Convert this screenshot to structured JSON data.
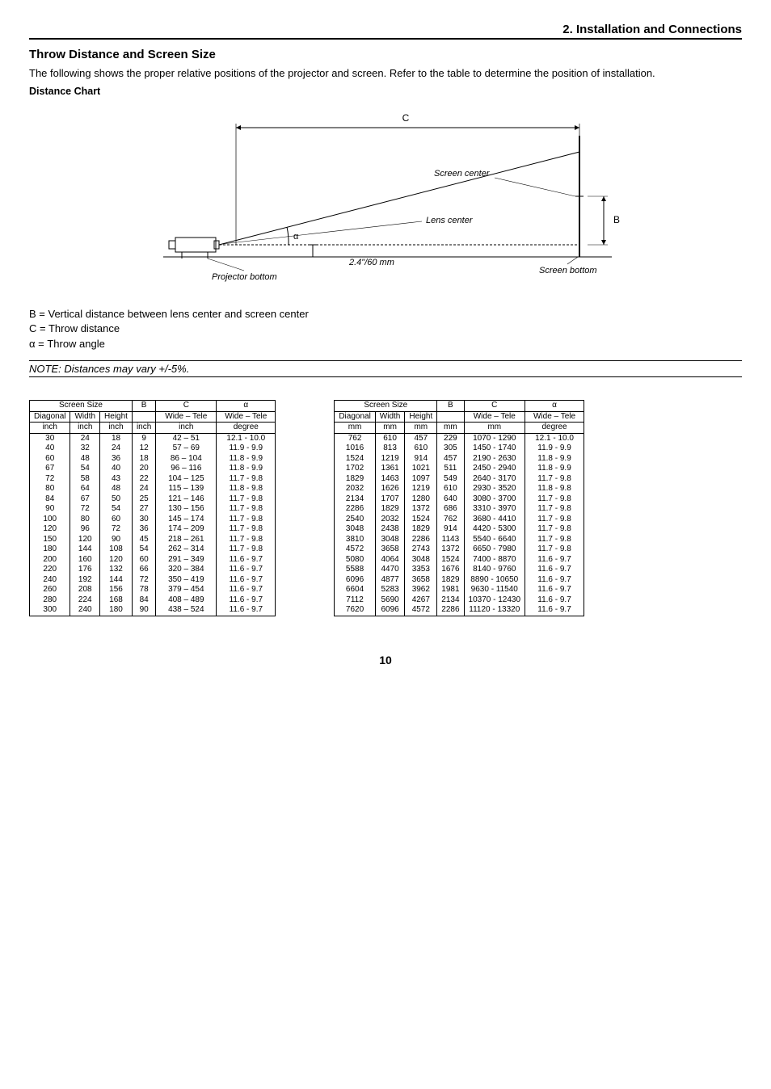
{
  "header": "2. Installation and Connections",
  "section_title": "Throw Distance and Screen Size",
  "intro": "The following shows the proper relative positions of the projector and screen. Refer to the table to determine the position of installation.",
  "sub_title": "Distance Chart",
  "diagram": {
    "labels": {
      "C": "C",
      "screen_center": "Screen center",
      "lens_center": "Lens center",
      "B": "B",
      "alpha": "α",
      "offset": "2.4\"/60 mm",
      "projector_bottom": "Projector bottom",
      "screen_bottom": "Screen bottom"
    }
  },
  "legend": {
    "B": "B =  Vertical distance between lens center and screen center",
    "C": "C =  Throw distance",
    "alpha": "α =  Throw angle"
  },
  "note": "NOTE: Distances may vary +/-5%.",
  "table_headers": {
    "screen_size": "Screen Size",
    "diagonal": "Diagonal",
    "width": "Width",
    "height": "Height",
    "B": "B",
    "C": "C",
    "alpha": "α",
    "wide_tele": "Wide – Tele",
    "unit_inch": "inch",
    "unit_mm": "mm",
    "unit_degree": "degree"
  },
  "table_inch": {
    "rows": [
      {
        "d": "30",
        "w": "24",
        "h": "18",
        "b": "9",
        "c": "42  –     51",
        "a": "12.1  - 10.0"
      },
      {
        "d": "40",
        "w": "32",
        "h": "24",
        "b": "12",
        "c": "57  –     69",
        "a": "11.9  -   9.9"
      },
      {
        "d": "60",
        "w": "48",
        "h": "36",
        "b": "18",
        "c": "86  –   104",
        "a": "11.8  -   9.9"
      },
      {
        "d": "67",
        "w": "54",
        "h": "40",
        "b": "20",
        "c": "96  –   116",
        "a": "11.8  -   9.9"
      },
      {
        "d": "72",
        "w": "58",
        "h": "43",
        "b": "22",
        "c": "104  –   125",
        "a": "11.7  -   9.8"
      },
      {
        "d": "80",
        "w": "64",
        "h": "48",
        "b": "24",
        "c": "115  –   139",
        "a": "11.8  -   9.8"
      },
      {
        "d": "84",
        "w": "67",
        "h": "50",
        "b": "25",
        "c": "121  –   146",
        "a": "11.7  -   9.8"
      },
      {
        "d": "90",
        "w": "72",
        "h": "54",
        "b": "27",
        "c": "130  –   156",
        "a": "11.7  -   9.8"
      },
      {
        "d": "100",
        "w": "80",
        "h": "60",
        "b": "30",
        "c": "145  –   174",
        "a": "11.7  -   9.8"
      },
      {
        "d": "120",
        "w": "96",
        "h": "72",
        "b": "36",
        "c": "174  –   209",
        "a": "11.7  -   9.8"
      },
      {
        "d": "150",
        "w": "120",
        "h": "90",
        "b": "45",
        "c": "218  –   261",
        "a": "11.7  -   9.8"
      },
      {
        "d": "180",
        "w": "144",
        "h": "108",
        "b": "54",
        "c": "262  –   314",
        "a": "11.7  -   9.8"
      },
      {
        "d": "200",
        "w": "160",
        "h": "120",
        "b": "60",
        "c": "291  –   349",
        "a": "11.6  -   9.7"
      },
      {
        "d": "220",
        "w": "176",
        "h": "132",
        "b": "66",
        "c": "320  –   384",
        "a": "11.6  -   9.7"
      },
      {
        "d": "240",
        "w": "192",
        "h": "144",
        "b": "72",
        "c": "350  –   419",
        "a": "11.6  -   9.7"
      },
      {
        "d": "260",
        "w": "208",
        "h": "156",
        "b": "78",
        "c": "379  –   454",
        "a": "11.6  -   9.7"
      },
      {
        "d": "280",
        "w": "224",
        "h": "168",
        "b": "84",
        "c": "408  –   489",
        "a": "11.6  -   9.7"
      },
      {
        "d": "300",
        "w": "240",
        "h": "180",
        "b": "90",
        "c": "438  –   524",
        "a": "11.6  -   9.7"
      }
    ]
  },
  "table_mm": {
    "rows": [
      {
        "d": "762",
        "w": "610",
        "h": "457",
        "b": "229",
        "c": "1070  -   1290",
        "a": "12.1  - 10.0"
      },
      {
        "d": "1016",
        "w": "813",
        "h": "610",
        "b": "305",
        "c": "1450  -   1740",
        "a": "11.9  -   9.9"
      },
      {
        "d": "1524",
        "w": "1219",
        "h": "914",
        "b": "457",
        "c": "2190  -   2630",
        "a": "11.8  -   9.9"
      },
      {
        "d": "1702",
        "w": "1361",
        "h": "1021",
        "b": "511",
        "c": "2450  -   2940",
        "a": "11.8  -   9.9"
      },
      {
        "d": "1829",
        "w": "1463",
        "h": "1097",
        "b": "549",
        "c": "2640  -   3170",
        "a": "11.7  -   9.8"
      },
      {
        "d": "2032",
        "w": "1626",
        "h": "1219",
        "b": "610",
        "c": "2930  -   3520",
        "a": "11.8  -   9.8"
      },
      {
        "d": "2134",
        "w": "1707",
        "h": "1280",
        "b": "640",
        "c": "3080  -   3700",
        "a": "11.7  -   9.8"
      },
      {
        "d": "2286",
        "w": "1829",
        "h": "1372",
        "b": "686",
        "c": "3310  -   3970",
        "a": "11.7  -   9.8"
      },
      {
        "d": "2540",
        "w": "2032",
        "h": "1524",
        "b": "762",
        "c": "3680  -   4410",
        "a": "11.7  -   9.8"
      },
      {
        "d": "3048",
        "w": "2438",
        "h": "1829",
        "b": "914",
        "c": "4420  -   5300",
        "a": "11.7  -   9.8"
      },
      {
        "d": "3810",
        "w": "3048",
        "h": "2286",
        "b": "1143",
        "c": "5540  -   6640",
        "a": "11.7  -   9.8"
      },
      {
        "d": "4572",
        "w": "3658",
        "h": "2743",
        "b": "1372",
        "c": "6650  -   7980",
        "a": "11.7  -   9.8"
      },
      {
        "d": "5080",
        "w": "4064",
        "h": "3048",
        "b": "1524",
        "c": "7400  -   8870",
        "a": "11.6  -   9.7"
      },
      {
        "d": "5588",
        "w": "4470",
        "h": "3353",
        "b": "1676",
        "c": "8140  -   9760",
        "a": "11.6  -   9.7"
      },
      {
        "d": "6096",
        "w": "4877",
        "h": "3658",
        "b": "1829",
        "c": "8890  - 10650",
        "a": "11.6  -   9.7"
      },
      {
        "d": "6604",
        "w": "5283",
        "h": "3962",
        "b": "1981",
        "c": "9630  - 11540",
        "a": "11.6  -   9.7"
      },
      {
        "d": "7112",
        "w": "5690",
        "h": "4267",
        "b": "2134",
        "c": "10370  - 12430",
        "a": "11.6  -   9.7"
      },
      {
        "d": "7620",
        "w": "6096",
        "h": "4572",
        "b": "2286",
        "c": "11120  - 13320",
        "a": "11.6  -   9.7"
      }
    ]
  },
  "page_number": "10"
}
